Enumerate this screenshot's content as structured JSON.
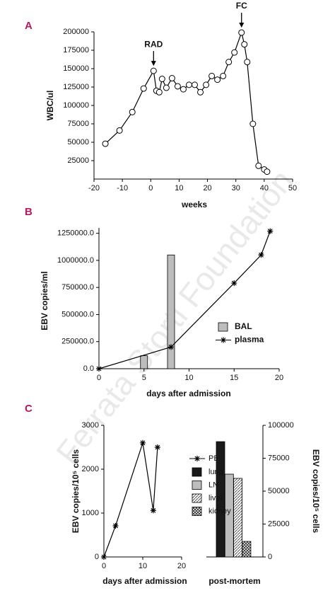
{
  "watermark": "Ferrata Storti Foundation",
  "chart_data": [
    {
      "type": "line",
      "panel": "A",
      "ylabel": "WBC/ul",
      "xlabel": "weeks",
      "x": [
        -16,
        -11,
        -6.5,
        -2.5,
        1,
        2,
        3,
        4,
        5.5,
        7.5,
        9.5,
        11.5,
        13.5,
        15.5,
        17.5,
        19.5,
        21.5,
        23.5,
        25.5,
        27.5,
        29.5,
        32,
        33,
        34,
        36,
        38,
        40,
        41
      ],
      "values": [
        48000,
        66000,
        91000,
        123000,
        147000,
        120000,
        118000,
        136000,
        124000,
        137000,
        126000,
        122000,
        128000,
        128000,
        118000,
        128000,
        140000,
        135000,
        140000,
        159000,
        172000,
        199000,
        183000,
        159000,
        75000,
        18000,
        13000,
        10000
      ],
      "color": "#000000",
      "marker": "circle",
      "annotations": [
        {
          "text": "RAD",
          "x": 1
        },
        {
          "text": "FC",
          "x": 32
        }
      ],
      "xlim": [
        -20,
        50
      ],
      "xticks": [
        -20,
        -10,
        0,
        10,
        20,
        30,
        40,
        50
      ],
      "ylim": [
        0,
        200000
      ],
      "yticks": [
        25000,
        50000,
        75000,
        100000,
        125000,
        150000,
        175000,
        200000
      ]
    },
    {
      "type": "line",
      "panel": "B",
      "ylabel": "EBV copies/ml",
      "xlabel": "days after admission",
      "legend": "center right",
      "series": [
        {
          "name": "BAL",
          "type": "bar",
          "color": "#bdbdbd",
          "x": [
            5,
            8
          ],
          "values": [
            120000,
            1050000
          ]
        },
        {
          "name": "plasma",
          "type": "line",
          "marker": "star",
          "color": "#000000",
          "x": [
            0,
            8,
            15,
            18,
            19
          ],
          "values": [
            0,
            200000,
            790000,
            1050000,
            1270000
          ]
        }
      ],
      "xlim": [
        0,
        20
      ],
      "xticks": [
        0,
        5,
        10,
        15,
        20
      ],
      "ylim": [
        0,
        1300000
      ],
      "yticks": [
        {
          "value": 0,
          "label": "0.0"
        },
        {
          "value": 250000,
          "label": "250000.0"
        },
        {
          "value": 500000,
          "label": "500000.0"
        },
        {
          "value": 750000,
          "label": "750000.0"
        },
        {
          "value": 1000000,
          "label": "1000000.0"
        },
        {
          "value": 1250000,
          "label": "1250000.0"
        }
      ]
    },
    {
      "type": "line",
      "panel": "C",
      "ylabel": "EBV copies/10⁵ cells",
      "xlabel": "days after admission",
      "legend": "right",
      "series": [
        {
          "name": "PBL",
          "marker": "star",
          "color": "#000000",
          "x": [
            0,
            3,
            10,
            12.7,
            13.8
          ],
          "values": [
            0,
            710,
            2600,
            1060,
            2500
          ]
        }
      ],
      "xlim": [
        0,
        20
      ],
      "xticks": [
        0,
        10,
        20
      ],
      "ylim": [
        0,
        3000
      ],
      "yticks": [
        0,
        1000,
        2000,
        3000
      ]
    },
    {
      "type": "bar",
      "ylabel": "EBV copies/10⁵ cells",
      "xlabel": "post-mortem",
      "legend": "left",
      "series": [
        {
          "name": "lung",
          "color": "#1a1a1a",
          "axis": "y2",
          "values": [
            87600
          ]
        },
        {
          "name": "LN",
          "color": "#bdbdbd",
          "axis": "y2",
          "values": [
            62900
          ]
        },
        {
          "name": "liver",
          "color": "#ffffff",
          "pattern": "diagonal",
          "axis": "y2",
          "values": [
            59700
          ]
        },
        {
          "name": "kidney",
          "color": "#ffffff",
          "pattern": "cross",
          "axis": "y2",
          "values": [
            11800
          ]
        }
      ],
      "y2lim": [
        0,
        100000
      ],
      "y2ticks": [
        0,
        25000,
        50000,
        75000,
        100000
      ]
    }
  ]
}
